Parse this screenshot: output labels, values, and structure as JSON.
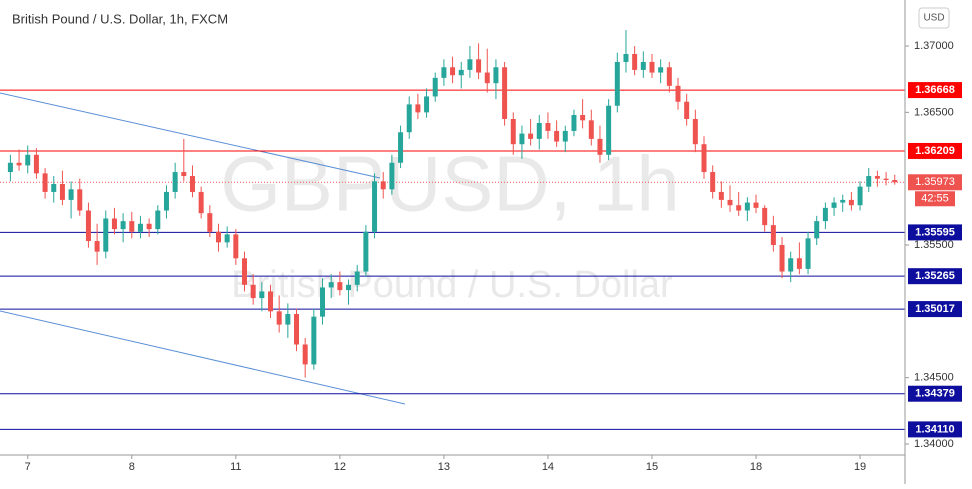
{
  "chart_data": {
    "type": "candlestick",
    "title": "British Pound / U.S. Dollar, 1h, FXCM",
    "watermark": "GBPUSD, 1h",
    "watermark_subtitle": "British Pound / U.S. Dollar",
    "currency": "USD",
    "up_color": "#26a69a",
    "down_color": "#ef5350",
    "categories": [
      null,
      null,
      "7",
      null,
      null,
      null,
      null,
      null,
      null,
      null,
      null,
      null,
      null,
      null,
      "8",
      null,
      null,
      null,
      null,
      null,
      null,
      null,
      null,
      null,
      null,
      null,
      "11",
      null,
      null,
      null,
      null,
      null,
      null,
      null,
      null,
      null,
      null,
      null,
      "12",
      null,
      null,
      null,
      null,
      null,
      null,
      null,
      null,
      null,
      null,
      null,
      "13",
      null,
      null,
      null,
      null,
      null,
      null,
      null,
      null,
      null,
      null,
      null,
      "14",
      null,
      null,
      null,
      null,
      null,
      null,
      null,
      null,
      null,
      null,
      null,
      "15",
      null,
      null,
      null,
      null,
      null,
      null,
      null,
      null,
      null,
      null,
      null,
      "18",
      null,
      null,
      null,
      null,
      null,
      null,
      null,
      null,
      null,
      null,
      null,
      "19",
      null,
      null,
      null,
      null
    ],
    "candles": [
      [
        1.3605,
        1.3618,
        1.3598,
        1.3612
      ],
      [
        1.3612,
        1.3622,
        1.3606,
        1.361
      ],
      [
        1.361,
        1.3625,
        1.3604,
        1.3618
      ],
      [
        1.3618,
        1.3623,
        1.36,
        1.3604
      ],
      [
        1.3604,
        1.3608,
        1.3585,
        1.359
      ],
      [
        1.359,
        1.3602,
        1.3582,
        1.3596
      ],
      [
        1.3596,
        1.3606,
        1.358,
        1.3584
      ],
      [
        1.3584,
        1.3598,
        1.357,
        1.3592
      ],
      [
        1.3592,
        1.36,
        1.3572,
        1.3576
      ],
      [
        1.3576,
        1.3582,
        1.3548,
        1.3553
      ],
      [
        1.3553,
        1.3566,
        1.3535,
        1.3545
      ],
      [
        1.3545,
        1.3576,
        1.354,
        1.357
      ],
      [
        1.357,
        1.3578,
        1.3558,
        1.3562
      ],
      [
        1.3562,
        1.3574,
        1.3552,
        1.3568
      ],
      [
        1.3568,
        1.3575,
        1.3555,
        1.356
      ],
      [
        1.356,
        1.3572,
        1.3555,
        1.3566
      ],
      [
        1.3566,
        1.357,
        1.3556,
        1.3562
      ],
      [
        1.3562,
        1.358,
        1.3558,
        1.3576
      ],
      [
        1.3576,
        1.3595,
        1.357,
        1.359
      ],
      [
        1.359,
        1.3612,
        1.3585,
        1.3605
      ],
      [
        1.3605,
        1.363,
        1.3598,
        1.3602
      ],
      [
        1.3602,
        1.361,
        1.3586,
        1.359
      ],
      [
        1.359,
        1.3594,
        1.357,
        1.3574
      ],
      [
        1.3574,
        1.358,
        1.3556,
        1.356
      ],
      [
        1.356,
        1.3566,
        1.3545,
        1.3552
      ],
      [
        1.3552,
        1.3564,
        1.3548,
        1.3558
      ],
      [
        1.3558,
        1.3562,
        1.3535,
        1.354
      ],
      [
        1.354,
        1.3545,
        1.3515,
        1.352
      ],
      [
        1.352,
        1.3528,
        1.3505,
        1.351
      ],
      [
        1.351,
        1.3522,
        1.35,
        1.3515
      ],
      [
        1.3515,
        1.352,
        1.3495,
        1.35
      ],
      [
        1.35,
        1.3512,
        1.3484,
        1.349
      ],
      [
        1.349,
        1.3506,
        1.348,
        1.3498
      ],
      [
        1.3498,
        1.3502,
        1.347,
        1.3475
      ],
      [
        1.3475,
        1.348,
        1.345,
        1.346
      ],
      [
        1.346,
        1.3502,
        1.3456,
        1.3496
      ],
      [
        1.3496,
        1.3525,
        1.349,
        1.3518
      ],
      [
        1.3518,
        1.3528,
        1.351,
        1.3522
      ],
      [
        1.3522,
        1.353,
        1.3512,
        1.3516
      ],
      [
        1.3516,
        1.3524,
        1.3505,
        1.352
      ],
      [
        1.352,
        1.3535,
        1.3515,
        1.353
      ],
      [
        1.353,
        1.3565,
        1.3526,
        1.356
      ],
      [
        1.356,
        1.3604,
        1.3555,
        1.3598
      ],
      [
        1.3598,
        1.3605,
        1.3585,
        1.3592
      ],
      [
        1.3592,
        1.3618,
        1.3588,
        1.3612
      ],
      [
        1.3612,
        1.364,
        1.3608,
        1.3635
      ],
      [
        1.3635,
        1.3662,
        1.363,
        1.3656
      ],
      [
        1.3656,
        1.3664,
        1.3645,
        1.365
      ],
      [
        1.365,
        1.3668,
        1.3646,
        1.3662
      ],
      [
        1.3662,
        1.368,
        1.3658,
        1.3676
      ],
      [
        1.3676,
        1.369,
        1.367,
        1.3684
      ],
      [
        1.3684,
        1.3692,
        1.3672,
        1.3678
      ],
      [
        1.3678,
        1.3688,
        1.3668,
        1.3682
      ],
      [
        1.3682,
        1.37,
        1.3676,
        1.369
      ],
      [
        1.369,
        1.3702,
        1.3675,
        1.368
      ],
      [
        1.368,
        1.3698,
        1.3665,
        1.3672
      ],
      [
        1.3672,
        1.369,
        1.366,
        1.3684
      ],
      [
        1.3684,
        1.3688,
        1.364,
        1.3645
      ],
      [
        1.3645,
        1.365,
        1.3618,
        1.3626
      ],
      [
        1.3626,
        1.364,
        1.3615,
        1.3634
      ],
      [
        1.3634,
        1.3645,
        1.3625,
        1.363
      ],
      [
        1.363,
        1.3648,
        1.3622,
        1.3642
      ],
      [
        1.3642,
        1.365,
        1.363,
        1.3636
      ],
      [
        1.3636,
        1.3644,
        1.3624,
        1.3628
      ],
      [
        1.3628,
        1.364,
        1.362,
        1.3636
      ],
      [
        1.3636,
        1.3652,
        1.3632,
        1.3648
      ],
      [
        1.3648,
        1.366,
        1.3638,
        1.3644
      ],
      [
        1.3644,
        1.3652,
        1.3625,
        1.363
      ],
      [
        1.363,
        1.364,
        1.3612,
        1.3618
      ],
      [
        1.3618,
        1.366,
        1.3614,
        1.3655
      ],
      [
        1.3655,
        1.3695,
        1.365,
        1.3688
      ],
      [
        1.3688,
        1.3712,
        1.368,
        1.3694
      ],
      [
        1.3694,
        1.37,
        1.3678,
        1.3682
      ],
      [
        1.3682,
        1.3696,
        1.3676,
        1.3688
      ],
      [
        1.3688,
        1.3694,
        1.3676,
        1.368
      ],
      [
        1.368,
        1.369,
        1.3672,
        1.3684
      ],
      [
        1.3684,
        1.3688,
        1.3665,
        1.367
      ],
      [
        1.367,
        1.3676,
        1.3652,
        1.3658
      ],
      [
        1.3658,
        1.3664,
        1.364,
        1.3645
      ],
      [
        1.3645,
        1.3652,
        1.362,
        1.3626
      ],
      [
        1.3626,
        1.3632,
        1.36,
        1.3605
      ],
      [
        1.3605,
        1.361,
        1.3585,
        1.359
      ],
      [
        1.359,
        1.3598,
        1.3578,
        1.3584
      ],
      [
        1.3584,
        1.3595,
        1.3575,
        1.358
      ],
      [
        1.358,
        1.359,
        1.3572,
        1.3576
      ],
      [
        1.3576,
        1.3586,
        1.3568,
        1.3582
      ],
      [
        1.3582,
        1.3588,
        1.3574,
        1.3578
      ],
      [
        1.3578,
        1.358,
        1.356,
        1.3565
      ],
      [
        1.3565,
        1.3572,
        1.3545,
        1.355
      ],
      [
        1.355,
        1.3556,
        1.3525,
        1.353
      ],
      [
        1.353,
        1.3545,
        1.3522,
        1.354
      ],
      [
        1.354,
        1.3552,
        1.3528,
        1.3532
      ],
      [
        1.3532,
        1.356,
        1.3528,
        1.3555
      ],
      [
        1.3555,
        1.3572,
        1.355,
        1.3568
      ],
      [
        1.3568,
        1.3582,
        1.3562,
        1.3578
      ],
      [
        1.3578,
        1.3586,
        1.3572,
        1.3582
      ],
      [
        1.3582,
        1.3588,
        1.3575,
        1.3584
      ],
      [
        1.3584,
        1.359,
        1.3576,
        1.358
      ],
      [
        1.358,
        1.3598,
        1.3576,
        1.3594
      ],
      [
        1.3594,
        1.3608,
        1.359,
        1.3602
      ],
      [
        1.3602,
        1.3606,
        1.3594,
        1.36
      ],
      [
        1.36,
        1.3605,
        1.3595,
        1.3599
      ],
      [
        1.3599,
        1.3603,
        1.35955,
        1.35973
      ]
    ],
    "ylim": [
      1.33917,
      1.37347
    ],
    "yticks": [
      {
        "value": 1.37,
        "label": "1.37000"
      },
      {
        "value": 1.365,
        "label": "1.36500"
      },
      {
        "value": 1.355,
        "label": "1.35500"
      },
      {
        "value": 1.345,
        "label": "1.34500"
      },
      {
        "value": 1.34,
        "label": "1.34000"
      }
    ],
    "levels": [
      {
        "value": 1.36668,
        "label": "1.36668",
        "color": "#ff0000"
      },
      {
        "value": 1.36209,
        "label": "1.36209",
        "color": "#ff0000"
      },
      {
        "value": 1.35595,
        "label": "1.35595",
        "color": "#0d0d9e"
      },
      {
        "value": 1.35265,
        "label": "1.35265",
        "color": "#0d0d9e"
      },
      {
        "value": 1.35017,
        "label": "1.35017",
        "color": "#0d0d9e"
      },
      {
        "value": 1.34379,
        "label": "1.34379",
        "color": "#0d0d9e"
      },
      {
        "value": 1.3411,
        "label": "1.34110",
        "color": "#0d0d9e"
      }
    ],
    "last_price": 1.35973,
    "countdown": "42:55",
    "last_price_color": "#ef5350"
  }
}
